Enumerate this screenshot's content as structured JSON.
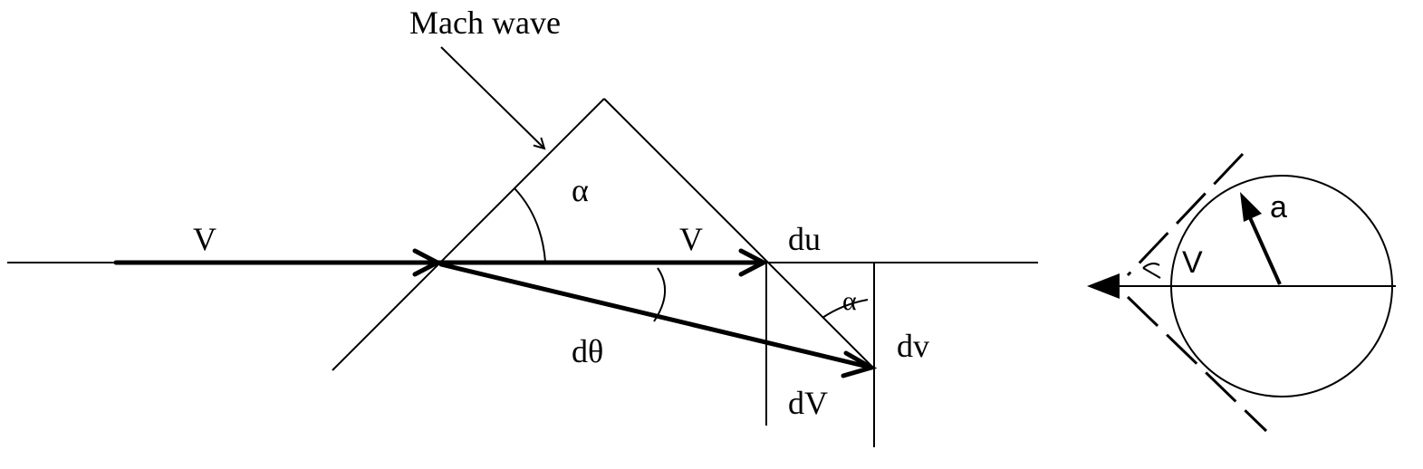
{
  "labels": {
    "mach_wave": "Mach wave",
    "v_upstream": "V",
    "alpha_top": "α",
    "v_downstream": "V",
    "du": "du",
    "alpha_small": "α",
    "dtheta": "dθ",
    "dv_small": "dv",
    "dV_big": "dV",
    "a": "a",
    "v_circle": "V"
  }
}
